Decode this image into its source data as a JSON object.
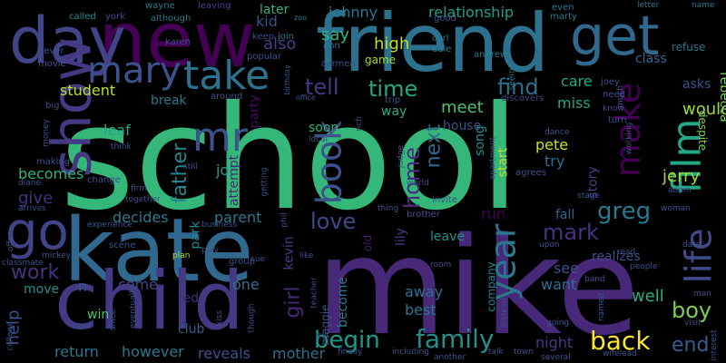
{
  "words": [
    {
      "text": "school",
      "color": "#35b779"
    },
    {
      "text": "mike",
      "color": "#482878"
    },
    {
      "text": "kate",
      "color": "#31688e"
    },
    {
      "text": "child",
      "color": "#443983"
    },
    {
      "text": "friend",
      "color": "#2c728e"
    },
    {
      "text": "new",
      "color": "#440154"
    },
    {
      "text": "day",
      "color": "#414487"
    },
    {
      "text": "get",
      "color": "#31688e"
    },
    {
      "text": "show",
      "color": "#443983"
    },
    {
      "text": "go",
      "color": "#414487"
    },
    {
      "text": "take",
      "color": "#2c728e"
    },
    {
      "text": "mr",
      "color": "#3b528b"
    },
    {
      "text": "mary",
      "color": "#3b528b"
    },
    {
      "text": "film",
      "color": "#22a884"
    },
    {
      "text": "life",
      "color": "#3e4a89"
    },
    {
      "text": "book",
      "color": "#3b528b"
    },
    {
      "text": "make",
      "color": "#440154"
    },
    {
      "text": "year",
      "color": "#2a788e"
    },
    {
      "text": "begin",
      "color": "#1f9a8a"
    },
    {
      "text": "family",
      "color": "#21918c"
    },
    {
      "text": "back",
      "color": "#fde725"
    },
    {
      "text": "love",
      "color": "#3e4a89"
    },
    {
      "text": "father",
      "color": "#25858e"
    },
    {
      "text": "tell",
      "color": "#443983"
    },
    {
      "text": "time",
      "color": "#22a884"
    },
    {
      "text": "find",
      "color": "#2c728e"
    },
    {
      "text": "student",
      "color": "#bddf26"
    },
    {
      "text": "greg",
      "color": "#2a788e"
    },
    {
      "text": "home",
      "color": "#472d7b"
    },
    {
      "text": "mark",
      "color": "#46327e"
    },
    {
      "text": "boy",
      "color": "#7ad151"
    },
    {
      "text": "girl",
      "color": "#482878"
    },
    {
      "text": "work",
      "color": "#46327e"
    },
    {
      "text": "help",
      "color": "#3b528b"
    },
    {
      "text": "end",
      "color": "#355f8d"
    },
    {
      "text": "well",
      "color": "#29af7f"
    },
    {
      "text": "next",
      "color": "#31688e"
    },
    {
      "text": "jerry",
      "color": "#a5db36"
    },
    {
      "text": "high",
      "color": "#bddf26"
    },
    {
      "text": "also",
      "color": "#433e85"
    },
    {
      "text": "say",
      "color": "#2fb47c"
    },
    {
      "text": "johnny",
      "color": "#2a788e"
    },
    {
      "text": "relationship",
      "color": "#1f9e89"
    },
    {
      "text": "kid",
      "color": "#3b528b"
    },
    {
      "text": "later",
      "color": "#2fb47c"
    },
    {
      "text": "meet",
      "color": "#4ac16d"
    },
    {
      "text": "house",
      "color": "#3b528b"
    },
    {
      "text": "way",
      "color": "#25ac82"
    },
    {
      "text": "song",
      "color": "#21918c"
    },
    {
      "text": "care",
      "color": "#22a884"
    },
    {
      "text": "miss",
      "color": "#22a884"
    },
    {
      "text": "story",
      "color": "#414487"
    },
    {
      "text": "pete",
      "color": "#d0e11c"
    },
    {
      "text": "try",
      "color": "#2c728e"
    },
    {
      "text": "start",
      "color": "#bddf26"
    },
    {
      "text": "lily",
      "color": "#443983"
    },
    {
      "text": "old",
      "color": "#481f70"
    },
    {
      "text": "would",
      "color": "#a2da37"
    },
    {
      "text": "rebecca",
      "color": "#7ad151"
    },
    {
      "text": "despite",
      "color": "#7ad151"
    },
    {
      "text": "asks",
      "color": "#3b528b"
    },
    {
      "text": "class",
      "color": "#31688e"
    },
    {
      "text": "refuse",
      "color": "#2c728e"
    },
    {
      "text": "leaf",
      "color": "#22a884"
    },
    {
      "text": "becomes",
      "color": "#2fb47c"
    },
    {
      "text": "give",
      "color": "#46327e"
    },
    {
      "text": "job",
      "color": "#1f9e89"
    },
    {
      "text": "attempt",
      "color": "#482878"
    },
    {
      "text": "party",
      "color": "#470d60"
    },
    {
      "text": "break",
      "color": "#2a788e"
    },
    {
      "text": "decides",
      "color": "#2a788e"
    },
    {
      "text": "parent",
      "color": "#2a788e"
    },
    {
      "text": "park",
      "color": "#25858e"
    },
    {
      "text": "ted",
      "color": "#472a7a"
    },
    {
      "text": "kevin",
      "color": "#433e85"
    },
    {
      "text": "come",
      "color": "#414487"
    },
    {
      "text": "one",
      "color": "#2c728e"
    },
    {
      "text": "club",
      "color": "#355f8d"
    },
    {
      "text": "win",
      "color": "#4ac16d"
    },
    {
      "text": "maggie",
      "color": "#3b528b"
    },
    {
      "text": "become",
      "color": "#2a788e"
    },
    {
      "text": "away",
      "color": "#2c728e"
    },
    {
      "text": "best",
      "color": "#2a788e"
    },
    {
      "text": "company",
      "color": "#25858e"
    },
    {
      "text": "night",
      "color": "#433e85"
    },
    {
      "text": "run",
      "color": "#440154"
    },
    {
      "text": "leave",
      "color": "#21918c"
    },
    {
      "text": "see",
      "color": "#3b528b"
    },
    {
      "text": "want",
      "color": "#2c728e"
    },
    {
      "text": "fall",
      "color": "#31688e"
    },
    {
      "text": "realizes",
      "color": "#3b528b"
    },
    {
      "text": "return",
      "color": "#2a788e"
    },
    {
      "text": "however",
      "color": "#2a788e"
    },
    {
      "text": "reveals",
      "color": "#3b528b"
    },
    {
      "text": "mother",
      "color": "#2c728e"
    },
    {
      "text": "soon",
      "color": "#2fb47c"
    },
    {
      "text": "move",
      "color": "#21918c"
    },
    {
      "text": "n",
      "color": "#3b528b"
    },
    {
      "text": "game",
      "color": "#a5db36"
    },
    {
      "text": "called",
      "color": "#21918c"
    },
    {
      "text": "york",
      "color": "#3b528b"
    },
    {
      "text": "wayne",
      "color": "#2a788e"
    },
    {
      "text": "although",
      "color": "#2a788e"
    },
    {
      "text": "leaving",
      "color": "#414487"
    },
    {
      "text": "zoo",
      "color": "#2a788e"
    },
    {
      "text": "keep",
      "color": "#3e4a89"
    },
    {
      "text": "join",
      "color": "#2a788e"
    },
    {
      "text": "good",
      "color": "#3b528b"
    },
    {
      "text": "even",
      "color": "#2a788e"
    },
    {
      "text": "marty",
      "color": "#2a788e"
    },
    {
      "text": "letter",
      "color": "#2a788e"
    },
    {
      "text": "name",
      "color": "#2a788e"
    },
    {
      "text": "karen",
      "color": "#3b528b"
    },
    {
      "text": "never",
      "color": "#3b528b"
    },
    {
      "text": "movie",
      "color": "#3b528b"
    },
    {
      "text": "popular",
      "color": "#3b528b"
    },
    {
      "text": "carmen",
      "color": "#3b528b"
    },
    {
      "text": "ann",
      "color": "#2a788e"
    },
    {
      "text": "carl",
      "color": "#2a788e"
    },
    {
      "text": "dale",
      "color": "#2a788e"
    },
    {
      "text": "andrew",
      "color": "#2a788e"
    },
    {
      "text": "without",
      "color": "#2a788e"
    },
    {
      "text": "seeing",
      "color": "#2a788e"
    },
    {
      "text": "joey",
      "color": "#3b528b"
    },
    {
      "text": "need",
      "color": "#3b528b"
    },
    {
      "text": "know",
      "color": "#3b528b"
    },
    {
      "text": "turn",
      "color": "#3b528b"
    },
    {
      "text": "discovers",
      "color": "#414487"
    },
    {
      "text": "trip",
      "color": "#3b528b"
    },
    {
      "text": "around",
      "color": "#3b528b"
    },
    {
      "text": "office",
      "color": "#3b528b"
    },
    {
      "text": "birthday",
      "color": "#3b528b"
    },
    {
      "text": "big",
      "color": "#3b528b"
    },
    {
      "text": "money",
      "color": "#3b528b"
    },
    {
      "text": "think",
      "color": "#3b528b"
    },
    {
      "text": "making",
      "color": "#3b528b"
    },
    {
      "text": "diane",
      "color": "#3b528b"
    },
    {
      "text": "change",
      "color": "#3b528b"
    },
    {
      "text": "arrives",
      "color": "#3b528b"
    },
    {
      "text": "firm",
      "color": "#3b528b"
    },
    {
      "text": "together",
      "color": "#3b528b"
    },
    {
      "text": "still",
      "color": "#3b528b"
    },
    {
      "text": "getting",
      "color": "#3b528b"
    },
    {
      "text": "local",
      "color": "#3b528b"
    },
    {
      "text": "rich",
      "color": "#3b528b"
    },
    {
      "text": "judge",
      "color": "#3b528b"
    },
    {
      "text": "world",
      "color": "#3b528b"
    },
    {
      "text": "apartment",
      "color": "#3b528b"
    },
    {
      "text": "much",
      "color": "#3b528b"
    },
    {
      "text": "dance",
      "color": "#3b528b"
    },
    {
      "text": "agrees",
      "color": "#3b528b"
    },
    {
      "text": "stage",
      "color": "#3b528b"
    },
    {
      "text": "working",
      "color": "#3b528b"
    },
    {
      "text": "adam",
      "color": "#3b528b"
    },
    {
      "text": "woman",
      "color": "#3b528b"
    },
    {
      "text": "invite",
      "color": "#3b528b"
    },
    {
      "text": "thing",
      "color": "#3b528b"
    },
    {
      "text": "brother",
      "color": "#3b528b"
    },
    {
      "text": "experience",
      "color": "#3b528b"
    },
    {
      "text": "business",
      "color": "#3b528b"
    },
    {
      "text": "offer",
      "color": "#3b528b"
    },
    {
      "text": "scene",
      "color": "#3b528b"
    },
    {
      "text": "plan",
      "color": "#a5db36"
    },
    {
      "text": "play",
      "color": "#3b528b"
    },
    {
      "text": "group",
      "color": "#3b528b"
    },
    {
      "text": "sue",
      "color": "#3b528b"
    },
    {
      "text": "phil",
      "color": "#3b528b"
    },
    {
      "text": "like",
      "color": "#3b528b"
    },
    {
      "text": "room",
      "color": "#3b528b"
    },
    {
      "text": "upon",
      "color": "#3b528b"
    },
    {
      "text": "read",
      "color": "#3b528b"
    },
    {
      "text": "date",
      "color": "#3b528b"
    },
    {
      "text": "classmate",
      "color": "#3b528b"
    },
    {
      "text": "mickey",
      "color": "#3b528b"
    },
    {
      "text": "people",
      "color": "#3b528b"
    },
    {
      "text": "band",
      "color": "#3b528b"
    },
    {
      "text": "man",
      "color": "#3b528b"
    },
    {
      "text": "college",
      "color": "#3b528b"
    },
    {
      "text": "case",
      "color": "#3b528b"
    },
    {
      "text": "since",
      "color": "#3b528b"
    },
    {
      "text": "eventually",
      "color": "#3b528b"
    },
    {
      "text": "kiss",
      "color": "#3b528b"
    },
    {
      "text": "though",
      "color": "#3b528b"
    },
    {
      "text": "teacher",
      "color": "#3b528b"
    },
    {
      "text": "put",
      "color": "#3b528b"
    },
    {
      "text": "finally",
      "color": "#3b528b"
    },
    {
      "text": "including",
      "color": "#3b528b"
    },
    {
      "text": "another",
      "color": "#3b528b"
    },
    {
      "text": "talk",
      "color": "#3b528b"
    },
    {
      "text": "town",
      "color": "#3b528b"
    },
    {
      "text": "several",
      "color": "#3b528b"
    },
    {
      "text": "instead",
      "color": "#3b528b"
    },
    {
      "text": "going",
      "color": "#3b528b"
    },
    {
      "text": "named",
      "color": "#3b528b"
    },
    {
      "text": "wifelead",
      "color": "#3b528b"
    },
    {
      "text": "visit",
      "color": "#3b528b"
    },
    {
      "text": "interest",
      "color": "#3b528b"
    }
  ]
}
